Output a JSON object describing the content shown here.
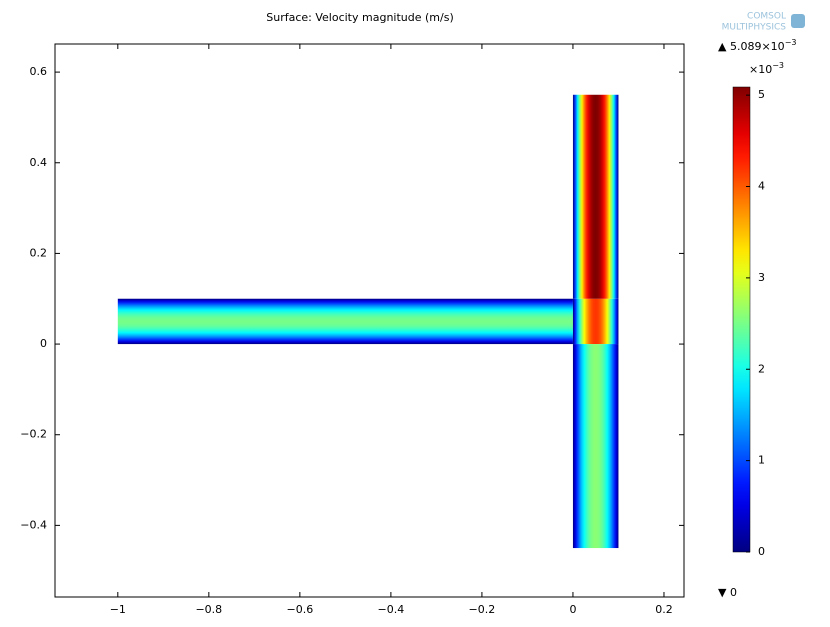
{
  "chart_data": {
    "type": "surface",
    "title": "Surface: Velocity magnitude (m/s)",
    "logo": [
      "COMSOL",
      "MULTIPHYSICS"
    ],
    "xlim": [
      -1.138,
      0.244
    ],
    "ylim": [
      -0.558,
      0.662
    ],
    "xticks": [
      {
        "value": -1,
        "label": "−1"
      },
      {
        "value": -0.8,
        "label": "−0.8"
      },
      {
        "value": -0.6,
        "label": "−0.6"
      },
      {
        "value": -0.4,
        "label": "−0.4"
      },
      {
        "value": -0.2,
        "label": "−0.2"
      },
      0,
      0.2
    ],
    "yticks": [
      {
        "value": -0.4,
        "label": "−0.4"
      },
      {
        "value": -0.2,
        "label": "−0.2"
      },
      0,
      0.2,
      0.4,
      0.6
    ],
    "domains": [
      {
        "x": [
          -1,
          0
        ],
        "y": [
          0,
          0.1
        ],
        "across": "y",
        "peak": 0.0025
      },
      {
        "x": [
          0,
          0.1
        ],
        "y": [
          0,
          0.1
        ],
        "across": "x",
        "peak": 0.0042
      },
      {
        "x": [
          0,
          0.1
        ],
        "y": [
          0.1,
          0.55
        ],
        "across": "x",
        "peak": 0.0051
      },
      {
        "x": [
          0,
          0.1
        ],
        "y": [
          -0.45,
          0
        ],
        "across": "x",
        "peak": 0.0026
      }
    ],
    "colorbar": {
      "colormap": "jet",
      "max": {
        "value": 0.005089,
        "label": "5.089×10",
        "exponent": "−3"
      },
      "min": 0,
      "multiplier": {
        "label": "×10",
        "exponent": "−3"
      },
      "ticks": [
        0,
        {
          "value": 0.001,
          "label": "1"
        },
        {
          "value": 0.002,
          "label": "2"
        },
        {
          "value": 0.003,
          "label": "3"
        },
        {
          "value": 0.004,
          "label": "4"
        },
        {
          "value": 0.005,
          "label": "5"
        }
      ]
    }
  }
}
